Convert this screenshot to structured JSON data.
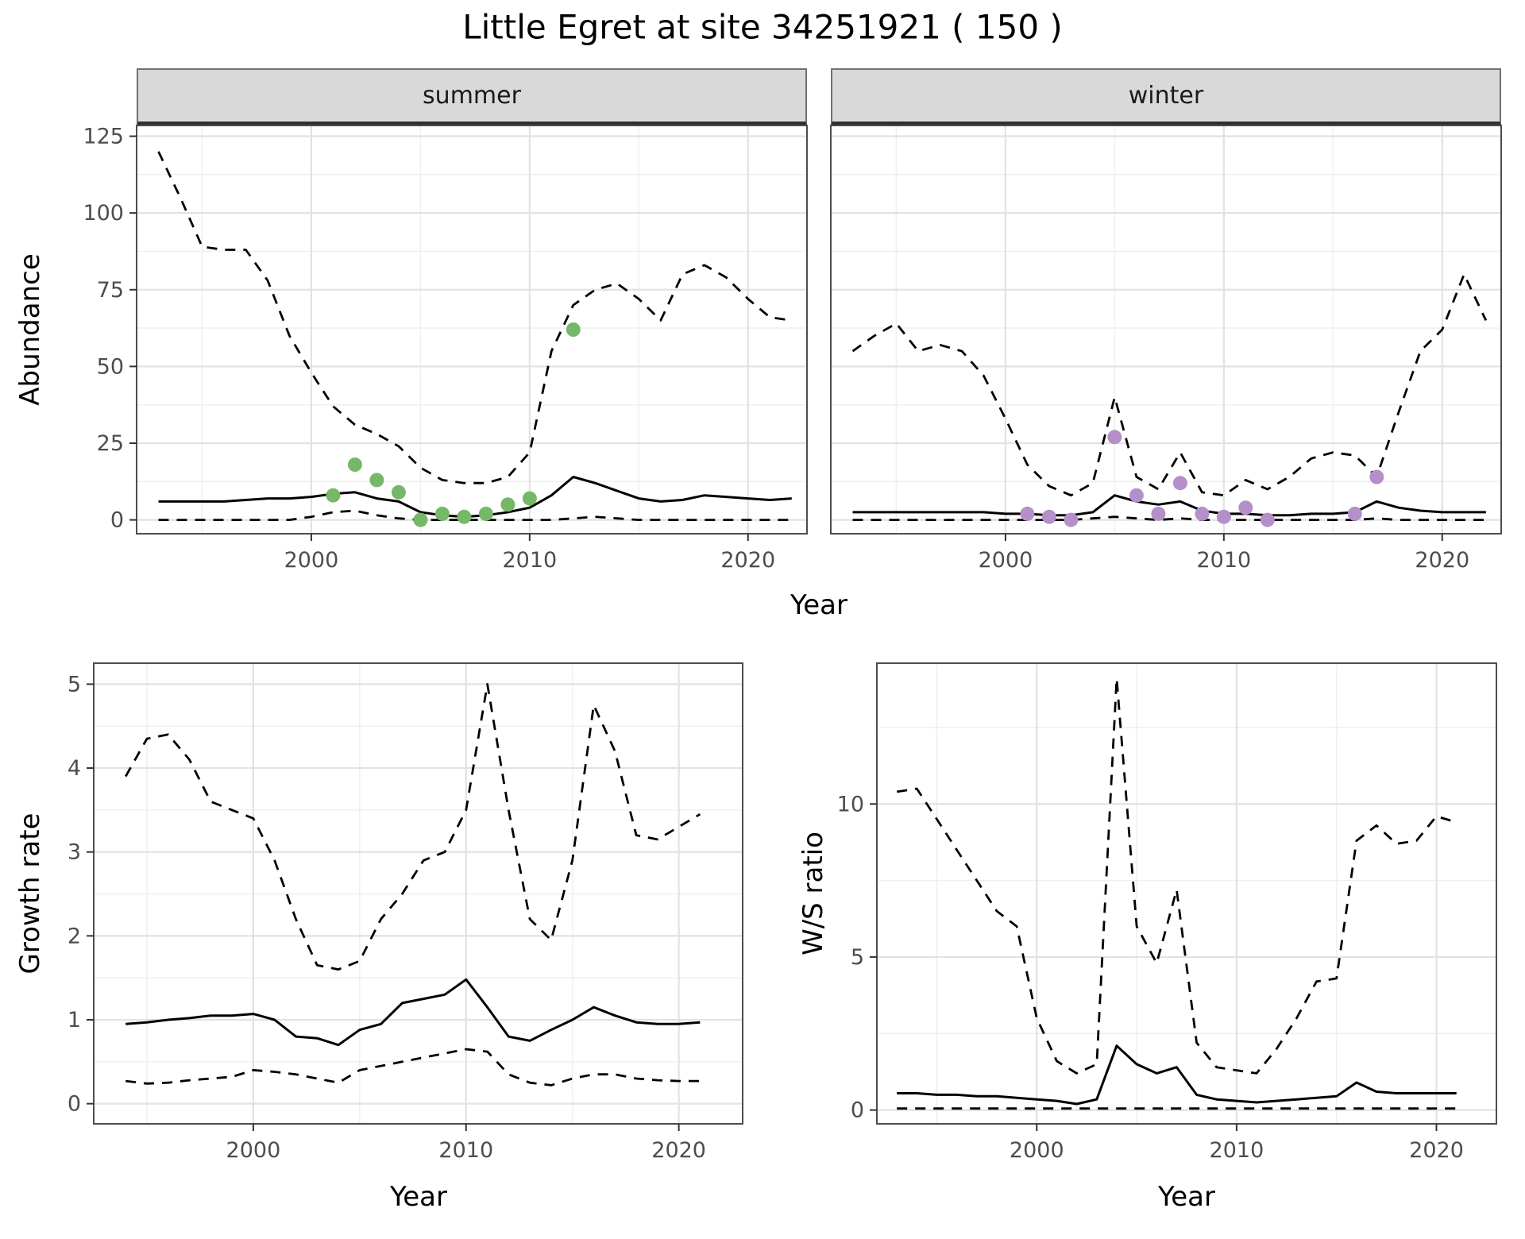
{
  "title": "Little Egret at site 34251921 ( 150 )",
  "facets": [
    "summer",
    "winter"
  ],
  "colors": {
    "summer_points": "#75b868",
    "winter_points": "#b58fc9",
    "line": "#000000",
    "strip_bg": "#d9d9d9",
    "grid_major": "#e2e2e2",
    "grid_minor": "#f0f0f0",
    "panel_border": "#4d4d4d",
    "tick_mark": "#333333",
    "axis_text": "#4d4d4d"
  },
  "chart_data": [
    {
      "type": "line",
      "facet": "summer",
      "ylabel": "Abundance",
      "xlabel": "Year",
      "xlim": [
        1992,
        2022.7
      ],
      "ylim": [
        -4.5,
        128.5
      ],
      "xticks": [
        2000,
        2010,
        2020
      ],
      "yticks": [
        0,
        25,
        50,
        75,
        100,
        125
      ],
      "grid": true,
      "legend": "none",
      "x": [
        1993,
        1994,
        1995,
        1996,
        1997,
        1998,
        1999,
        2000,
        2001,
        2002,
        2003,
        2004,
        2005,
        2006,
        2007,
        2008,
        2009,
        2010,
        2011,
        2012,
        2013,
        2014,
        2015,
        2016,
        2017,
        2018,
        2019,
        2020,
        2021,
        2022
      ],
      "series": [
        {
          "name": "upper-ci",
          "style": "dashed",
          "values": [
            120,
            105,
            89,
            88,
            88,
            78,
            60,
            48,
            37,
            31,
            28,
            24,
            17,
            13,
            12,
            12,
            14,
            22,
            55,
            70,
            75,
            77,
            72,
            65,
            80,
            83,
            79,
            72,
            66,
            65
          ]
        },
        {
          "name": "median",
          "style": "solid",
          "values": [
            6,
            6,
            6,
            6,
            6.5,
            7,
            7,
            7.5,
            8.5,
            9,
            7,
            6,
            2.5,
            1.5,
            1,
            1.5,
            2.5,
            4,
            8,
            14,
            12,
            9.5,
            7,
            6,
            6.5,
            8,
            7.5,
            7,
            6.5,
            7
          ]
        },
        {
          "name": "lower-ci",
          "style": "dashed",
          "values": [
            0,
            0,
            0,
            0,
            0,
            0,
            0,
            1,
            2.5,
            3,
            1.5,
            0.5,
            0,
            0,
            0,
            0,
            0,
            0,
            0,
            0.5,
            1,
            0.5,
            0,
            0,
            0,
            0,
            0,
            0,
            0,
            0
          ]
        }
      ],
      "points": {
        "name": "observed-counts-summer",
        "color": "#75b868",
        "x": [
          2001,
          2002,
          2003,
          2004,
          2005,
          2006,
          2007,
          2008,
          2009,
          2010,
          2012
        ],
        "y": [
          8,
          18,
          13,
          9,
          0,
          2,
          1,
          2,
          5,
          7,
          62
        ]
      }
    },
    {
      "type": "line",
      "facet": "winter",
      "ylabel": "Abundance",
      "xlabel": "Year",
      "xlim": [
        1992,
        2022.7
      ],
      "ylim": [
        -4.5,
        128.5
      ],
      "xticks": [
        2000,
        2010,
        2020
      ],
      "yticks": [
        0,
        25,
        50,
        75,
        100,
        125
      ],
      "grid": true,
      "legend": "none",
      "x": [
        1993,
        1994,
        1995,
        1996,
        1997,
        1998,
        1999,
        2000,
        2001,
        2002,
        2003,
        2004,
        2005,
        2006,
        2007,
        2008,
        2009,
        2010,
        2011,
        2012,
        2013,
        2014,
        2015,
        2016,
        2017,
        2018,
        2019,
        2020,
        2021,
        2022
      ],
      "series": [
        {
          "name": "upper-ci",
          "style": "dashed",
          "values": [
            55,
            60,
            64,
            55,
            57,
            55,
            47,
            33,
            18,
            11,
            8,
            12,
            40,
            14,
            10,
            22,
            9,
            8,
            13,
            10,
            14,
            20,
            22,
            21,
            14,
            35,
            55,
            62,
            80,
            65
          ]
        },
        {
          "name": "median",
          "style": "solid",
          "values": [
            2.5,
            2.5,
            2.5,
            2.5,
            2.5,
            2.5,
            2.5,
            2,
            2,
            1.5,
            1.5,
            2.5,
            8,
            6,
            5,
            6,
            3,
            2,
            2,
            1.5,
            1.5,
            2,
            2,
            2.5,
            6,
            4,
            3,
            2.5,
            2.5,
            2.5
          ]
        },
        {
          "name": "lower-ci",
          "style": "dashed",
          "values": [
            0,
            0,
            0,
            0,
            0,
            0,
            0,
            0,
            0,
            0,
            0,
            0.5,
            1,
            0.5,
            0,
            0.5,
            0,
            0,
            0,
            0,
            0,
            0,
            0,
            0,
            0.5,
            0,
            0,
            0,
            0,
            0
          ]
        }
      ],
      "points": {
        "name": "observed-counts-winter",
        "color": "#b58fc9",
        "x": [
          2001,
          2002,
          2003,
          2005,
          2006,
          2007,
          2008,
          2009,
          2010,
          2011,
          2012,
          2016,
          2017
        ],
        "y": [
          2,
          1,
          0,
          27,
          8,
          2,
          12,
          2,
          1,
          4,
          0,
          2,
          14
        ]
      }
    },
    {
      "type": "line",
      "ylabel": "Growth rate",
      "xlabel": "Year",
      "xlim": [
        1992.5,
        2023
      ],
      "ylim": [
        -0.24,
        5.25
      ],
      "xticks": [
        2000,
        2010,
        2020
      ],
      "yticks": [
        0,
        1,
        2,
        3,
        4,
        5
      ],
      "grid": true,
      "legend": "none",
      "x": [
        1994,
        1995,
        1996,
        1997,
        1998,
        1999,
        2000,
        2001,
        2002,
        2003,
        2004,
        2005,
        2006,
        2007,
        2008,
        2009,
        2010,
        2011,
        2012,
        2013,
        2014,
        2015,
        2016,
        2017,
        2018,
        2019,
        2020,
        2021
      ],
      "series": [
        {
          "name": "upper-ci",
          "style": "dashed",
          "values": [
            3.9,
            4.35,
            4.4,
            4.1,
            3.6,
            3.5,
            3.4,
            2.9,
            2.2,
            1.65,
            1.6,
            1.7,
            2.2,
            2.5,
            2.9,
            3.0,
            3.5,
            5.0,
            3.5,
            2.2,
            1.95,
            2.9,
            4.75,
            4.2,
            3.2,
            3.15,
            3.3,
            3.45
          ]
        },
        {
          "name": "median",
          "style": "solid",
          "values": [
            0.95,
            0.97,
            1.0,
            1.02,
            1.05,
            1.05,
            1.07,
            1.0,
            0.8,
            0.78,
            0.7,
            0.88,
            0.95,
            1.2,
            1.25,
            1.3,
            1.48,
            1.15,
            0.8,
            0.75,
            0.88,
            1.0,
            1.15,
            1.05,
            0.97,
            0.95,
            0.95,
            0.97
          ]
        },
        {
          "name": "lower-ci",
          "style": "dashed",
          "values": [
            0.27,
            0.24,
            0.25,
            0.28,
            0.3,
            0.32,
            0.4,
            0.38,
            0.35,
            0.3,
            0.25,
            0.4,
            0.45,
            0.5,
            0.55,
            0.6,
            0.65,
            0.62,
            0.35,
            0.25,
            0.22,
            0.3,
            0.35,
            0.35,
            0.3,
            0.28,
            0.27,
            0.27
          ]
        }
      ]
    },
    {
      "type": "line",
      "ylabel": "W/S ratio",
      "xlabel": "Year",
      "xlim": [
        1992,
        2023
      ],
      "ylim": [
        -0.45,
        14.6
      ],
      "xticks": [
        2000,
        2010,
        2020
      ],
      "yticks": [
        0,
        5,
        10
      ],
      "grid": true,
      "legend": "none",
      "x": [
        1993,
        1994,
        1995,
        1996,
        1997,
        1998,
        1999,
        2000,
        2001,
        2002,
        2003,
        2004,
        2005,
        2006,
        2007,
        2008,
        2009,
        2010,
        2011,
        2012,
        2013,
        2014,
        2015,
        2016,
        2017,
        2018,
        2019,
        2020,
        2021
      ],
      "series": [
        {
          "name": "upper-ci",
          "style": "dashed",
          "values": [
            10.4,
            10.5,
            9.5,
            8.5,
            7.5,
            6.5,
            6.0,
            3.0,
            1.6,
            1.2,
            1.5,
            14.1,
            6.0,
            4.8,
            7.2,
            2.2,
            1.4,
            1.3,
            1.2,
            2.0,
            3.0,
            4.2,
            4.3,
            8.8,
            9.3,
            8.7,
            8.8,
            9.6,
            9.4
          ]
        },
        {
          "name": "median",
          "style": "solid",
          "values": [
            0.55,
            0.55,
            0.5,
            0.5,
            0.45,
            0.45,
            0.4,
            0.35,
            0.3,
            0.2,
            0.35,
            2.1,
            1.5,
            1.2,
            1.4,
            0.5,
            0.35,
            0.3,
            0.25,
            0.3,
            0.35,
            0.4,
            0.45,
            0.9,
            0.6,
            0.55,
            0.55,
            0.55,
            0.55
          ]
        },
        {
          "name": "lower-ci",
          "style": "dashed",
          "values": [
            0.05,
            0.05,
            0.05,
            0.05,
            0.05,
            0.05,
            0.05,
            0.05,
            0.05,
            0.05,
            0.05,
            0.05,
            0.05,
            0.05,
            0.05,
            0.05,
            0.05,
            0.05,
            0.05,
            0.05,
            0.05,
            0.05,
            0.05,
            0.05,
            0.05,
            0.05,
            0.05,
            0.05,
            0.05
          ]
        }
      ]
    }
  ]
}
